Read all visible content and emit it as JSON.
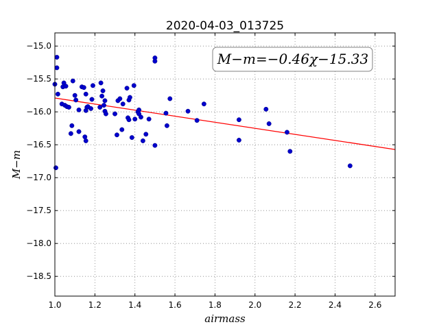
{
  "chart_data": {
    "type": "scatter",
    "title": "2020-04-03_013725",
    "xlabel": "airmass",
    "ylabel": "M−m",
    "xlim": [
      1.0,
      2.7
    ],
    "ylim": [
      -18.8,
      -14.8
    ],
    "x_ticks": [
      1.0,
      1.2,
      1.4,
      1.6,
      1.8,
      2.0,
      2.2,
      2.4,
      2.6
    ],
    "x_tick_labels": [
      "1.0",
      "1.2",
      "1.4",
      "1.6",
      "1.8",
      "2.0",
      "2.2",
      "2.4",
      "2.6"
    ],
    "y_ticks": [
      -15.0,
      -15.5,
      -16.0,
      -16.5,
      -17.0,
      -17.5,
      -18.0,
      -18.5
    ],
    "y_tick_labels": [
      "−15.0",
      "−15.5",
      "−16.0",
      "−16.5",
      "−17.0",
      "−17.5",
      "−18.0",
      "−18.5"
    ],
    "grid": true,
    "annotation": "M−m=−0.46χ−15.33",
    "annotation_position": "top-right",
    "colors": {
      "points": "#0000cc",
      "fit_line": "#ff0000",
      "grid": "#808080"
    },
    "fit": {
      "slope": -0.46,
      "intercept": -15.33
    },
    "points": [
      {
        "x": 1.0,
        "y": -15.58
      },
      {
        "x": 1.005,
        "y": -16.85
      },
      {
        "x": 1.01,
        "y": -15.17
      },
      {
        "x": 1.01,
        "y": -15.33
      },
      {
        "x": 1.015,
        "y": -15.73
      },
      {
        "x": 1.035,
        "y": -15.88
      },
      {
        "x": 1.04,
        "y": -15.62
      },
      {
        "x": 1.045,
        "y": -15.56
      },
      {
        "x": 1.05,
        "y": -15.9
      },
      {
        "x": 1.055,
        "y": -15.61
      },
      {
        "x": 1.06,
        "y": -15.92
      },
      {
        "x": 1.07,
        "y": -15.93
      },
      {
        "x": 1.08,
        "y": -16.33
      },
      {
        "x": 1.085,
        "y": -16.21
      },
      {
        "x": 1.09,
        "y": -15.53
      },
      {
        "x": 1.1,
        "y": -15.75
      },
      {
        "x": 1.105,
        "y": -15.82
      },
      {
        "x": 1.12,
        "y": -15.97
      },
      {
        "x": 1.12,
        "y": -16.3
      },
      {
        "x": 1.135,
        "y": -15.62
      },
      {
        "x": 1.145,
        "y": -15.63
      },
      {
        "x": 1.15,
        "y": -16.38
      },
      {
        "x": 1.155,
        "y": -15.73
      },
      {
        "x": 1.155,
        "y": -15.98
      },
      {
        "x": 1.155,
        "y": -16.44
      },
      {
        "x": 1.16,
        "y": -15.93
      },
      {
        "x": 1.165,
        "y": -15.92
      },
      {
        "x": 1.18,
        "y": -15.95
      },
      {
        "x": 1.185,
        "y": -15.81
      },
      {
        "x": 1.19,
        "y": -15.6
      },
      {
        "x": 1.225,
        "y": -15.93
      },
      {
        "x": 1.23,
        "y": -15.56
      },
      {
        "x": 1.235,
        "y": -15.76
      },
      {
        "x": 1.24,
        "y": -15.68
      },
      {
        "x": 1.245,
        "y": -15.9
      },
      {
        "x": 1.25,
        "y": -15.83
      },
      {
        "x": 1.25,
        "y": -15.99
      },
      {
        "x": 1.255,
        "y": -16.03
      },
      {
        "x": 1.3,
        "y": -16.03
      },
      {
        "x": 1.31,
        "y": -16.35
      },
      {
        "x": 1.315,
        "y": -15.83
      },
      {
        "x": 1.325,
        "y": -15.8
      },
      {
        "x": 1.335,
        "y": -16.27
      },
      {
        "x": 1.34,
        "y": -15.88
      },
      {
        "x": 1.36,
        "y": -15.64
      },
      {
        "x": 1.365,
        "y": -16.09
      },
      {
        "x": 1.37,
        "y": -15.82
      },
      {
        "x": 1.37,
        "y": -16.12
      },
      {
        "x": 1.375,
        "y": -15.78
      },
      {
        "x": 1.385,
        "y": -16.39
      },
      {
        "x": 1.395,
        "y": -15.6
      },
      {
        "x": 1.4,
        "y": -16.11
      },
      {
        "x": 1.415,
        "y": -16.0
      },
      {
        "x": 1.42,
        "y": -15.97
      },
      {
        "x": 1.42,
        "y": -16.03
      },
      {
        "x": 1.43,
        "y": -16.08
      },
      {
        "x": 1.44,
        "y": -16.44
      },
      {
        "x": 1.455,
        "y": -16.34
      },
      {
        "x": 1.47,
        "y": -16.11
      },
      {
        "x": 1.5,
        "y": -15.18
      },
      {
        "x": 1.5,
        "y": -15.23
      },
      {
        "x": 1.5,
        "y": -16.51
      },
      {
        "x": 1.555,
        "y": -16.02
      },
      {
        "x": 1.56,
        "y": -16.21
      },
      {
        "x": 1.575,
        "y": -15.8
      },
      {
        "x": 1.665,
        "y": -15.99
      },
      {
        "x": 1.71,
        "y": -16.13
      },
      {
        "x": 1.745,
        "y": -15.88
      },
      {
        "x": 1.92,
        "y": -16.12
      },
      {
        "x": 1.92,
        "y": -16.43
      },
      {
        "x": 2.055,
        "y": -15.96
      },
      {
        "x": 2.07,
        "y": -16.18
      },
      {
        "x": 2.16,
        "y": -16.31
      },
      {
        "x": 2.175,
        "y": -16.6
      },
      {
        "x": 2.475,
        "y": -16.82
      }
    ]
  }
}
